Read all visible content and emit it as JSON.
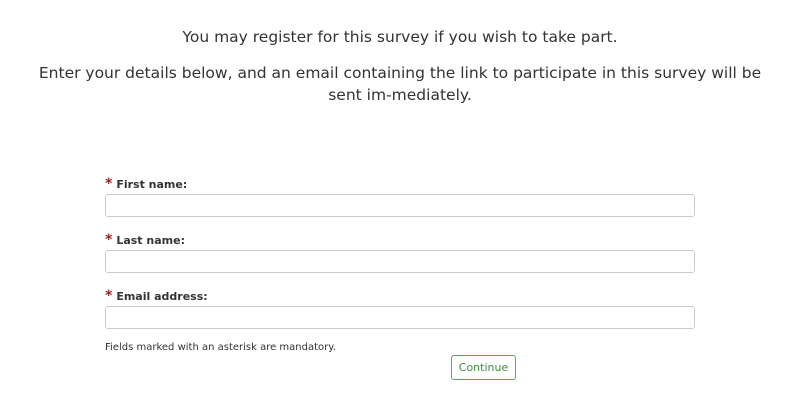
{
  "intro": {
    "line1": "You may register for this survey if you wish to take part.",
    "line2": "Enter your details below, and an email containing the link to participate in this survey will be sent im-mediately."
  },
  "form": {
    "asterisk": "*",
    "fields": [
      {
        "label": "First name:",
        "value": ""
      },
      {
        "label": "Last name:",
        "value": ""
      },
      {
        "label": "Email address:",
        "value": ""
      }
    ],
    "note": "Fields marked with an asterisk are mandatory.",
    "continue_label": "Continue"
  },
  "colors": {
    "required": "#a02020",
    "accent": "#5aa85a"
  }
}
